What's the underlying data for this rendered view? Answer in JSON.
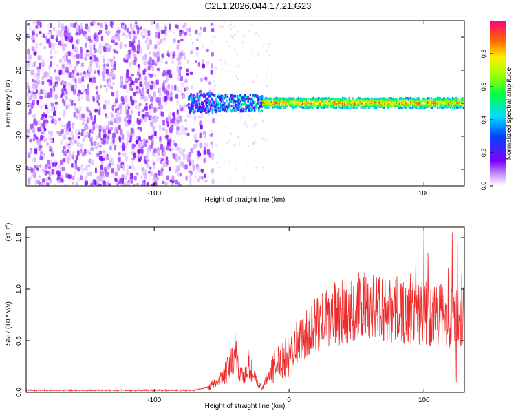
{
  "title": "C2E1.2026.044.17.21.G23",
  "colors": {
    "snr_line": "#ee2b2b",
    "axis": "#000000",
    "background": "#ffffff"
  },
  "chart_data": [
    {
      "type": "heatmap",
      "name": "spectrogram",
      "xlabel": "Height of straight line (km)",
      "ylabel": "Frequency (Hz)",
      "xlim": [
        -195,
        130
      ],
      "ylim": [
        -50,
        50
      ],
      "x_ticks": [
        {
          "value": -100,
          "label": "-100"
        },
        {
          "value": 100,
          "label": "100"
        }
      ],
      "y_ticks": [
        {
          "value": -40,
          "label": "-40"
        },
        {
          "value": -20,
          "label": "-20"
        },
        {
          "value": 0,
          "label": "0"
        },
        {
          "value": 20,
          "label": "20"
        },
        {
          "value": 40,
          "label": "40"
        }
      ],
      "noise_region_x": [
        -195,
        -57
      ],
      "signal_band": [
        {
          "x_start": -75,
          "x_end": -55,
          "half_width_hz": 6,
          "amplitude": 0.3
        },
        {
          "x_start": -55,
          "x_end": -20,
          "half_width_hz": 5,
          "amplitude": 0.4
        },
        {
          "x_start": -20,
          "x_end": 130,
          "half_width_hz": 3,
          "amplitude": 0.98
        }
      ],
      "colorbar": {
        "label": "Normalized spectral amplitude",
        "range": [
          0,
          1
        ],
        "ticks": [
          {
            "value": 0.0,
            "label": "0.0"
          },
          {
            "value": 0.2,
            "label": "0.2"
          },
          {
            "value": 0.4,
            "label": "0.4"
          },
          {
            "value": 0.6,
            "label": "0.6"
          },
          {
            "value": 0.8,
            "label": "0.8"
          }
        ]
      }
    },
    {
      "type": "line",
      "name": "snr",
      "xlabel": "Height of straight line (km)",
      "ylabel": "SNR (10 * v/v)",
      "scale_label": "(x10",
      "scale_exp": "4",
      "scale_close": ")",
      "xlim": [
        -195,
        130
      ],
      "ylim": [
        0,
        1.6
      ],
      "x_ticks": [
        {
          "value": -100,
          "label": "-100"
        },
        {
          "value": 0,
          "label": "0"
        },
        {
          "value": 100,
          "label": "100"
        }
      ],
      "y_ticks": [
        {
          "value": 0.0,
          "label": "0.0"
        },
        {
          "value": 0.5,
          "label": "0.5"
        },
        {
          "value": 1.0,
          "label": "1.0"
        },
        {
          "value": 1.5,
          "label": "1.5"
        }
      ],
      "envelope": [
        [
          -195,
          0.02
        ],
        [
          -70,
          0.02
        ],
        [
          -60,
          0.05
        ],
        [
          -50,
          0.15
        ],
        [
          -45,
          0.25
        ],
        [
          -40,
          0.4
        ],
        [
          -37,
          0.25
        ],
        [
          -33,
          0.15
        ],
        [
          -30,
          0.3
        ],
        [
          -27,
          0.2
        ],
        [
          -24,
          0.1
        ],
        [
          -20,
          0.05
        ],
        [
          -15,
          0.18
        ],
        [
          -10,
          0.3
        ],
        [
          0,
          0.45
        ],
        [
          10,
          0.55
        ],
        [
          20,
          0.68
        ],
        [
          30,
          0.78
        ],
        [
          40,
          0.82
        ],
        [
          50,
          0.86
        ],
        [
          60,
          0.88
        ],
        [
          70,
          0.85
        ],
        [
          80,
          0.84
        ],
        [
          90,
          0.8
        ],
        [
          100,
          0.82
        ],
        [
          110,
          0.8
        ],
        [
          120,
          0.75
        ],
        [
          130,
          0.78
        ]
      ],
      "peaks": [
        {
          "x": 100,
          "y": 1.6
        },
        {
          "x": 94,
          "y": 1.3
        },
        {
          "x": 103,
          "y": 1.35
        },
        {
          "x": 121,
          "y": 1.55
        },
        {
          "x": 125,
          "y": 1.45
        },
        {
          "x": 118,
          "y": 1.2
        },
        {
          "x": 128,
          "y": 1.15
        },
        {
          "x": 90,
          "y": 1.15
        },
        {
          "x": 124,
          "y": 0.1
        }
      ]
    }
  ]
}
